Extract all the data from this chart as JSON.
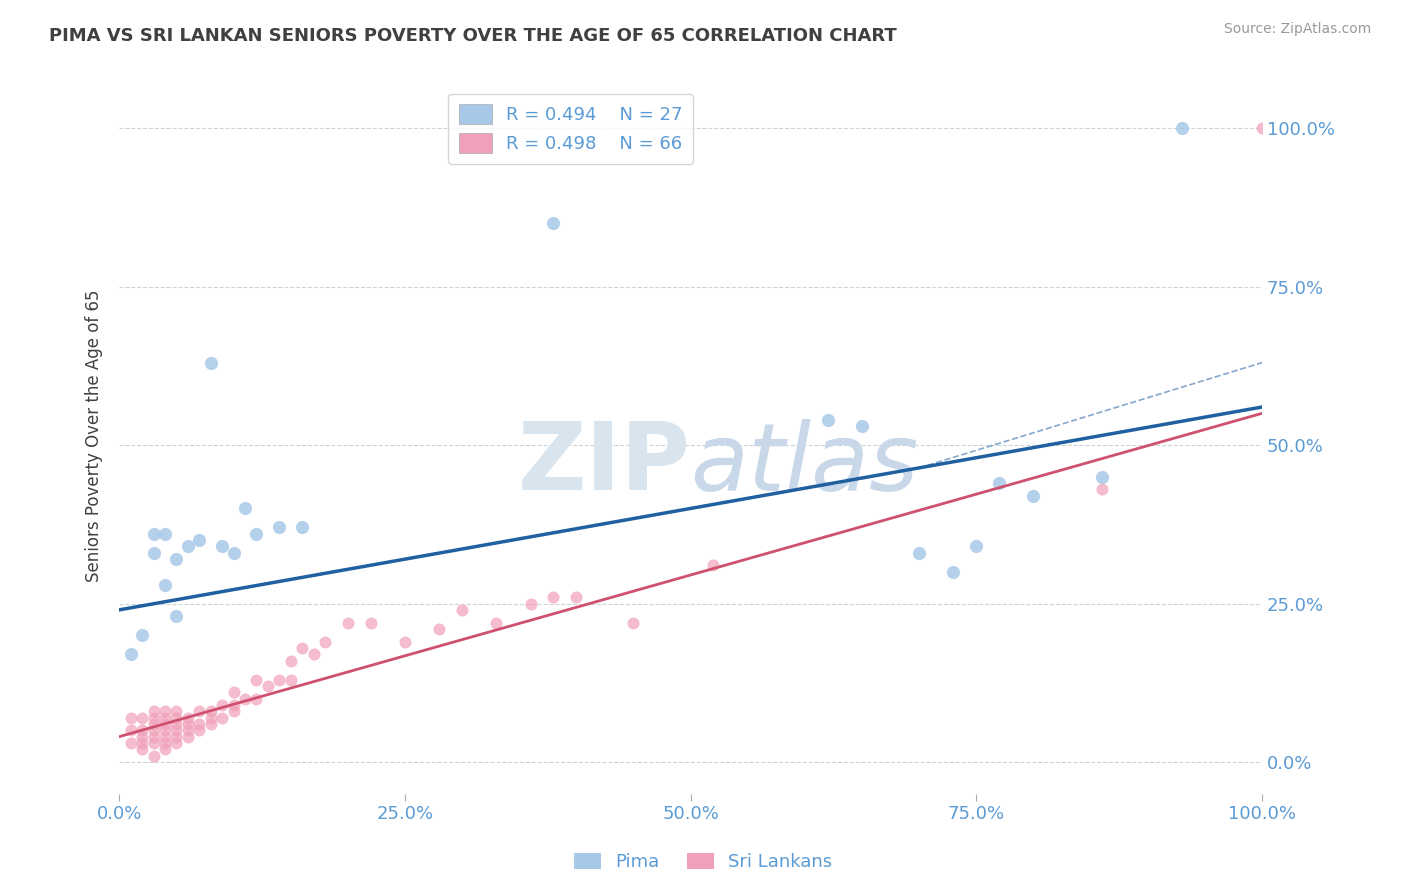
{
  "title": "PIMA VS SRI LANKAN SENIORS POVERTY OVER THE AGE OF 65 CORRELATION CHART",
  "source": "Source: ZipAtlas.com",
  "ylabel": "Seniors Poverty Over the Age of 65",
  "pima_R": 0.494,
  "pima_N": 27,
  "sri_R": 0.498,
  "sri_N": 66,
  "pima_color": "#A8C8E8",
  "sri_color": "#F0A0B8",
  "pima_line_color": "#2060A0",
  "sri_line_color": "#D05070",
  "axis_label_color": "#5B9BD5",
  "title_color": "#404040",
  "background_color": "#FFFFFF",
  "watermark_color": "#D8E4EE",
  "xlim": [
    0.0,
    1.0
  ],
  "ylim": [
    -0.05,
    1.08
  ],
  "yticks": [
    0.0,
    0.25,
    0.5,
    0.75,
    1.0
  ],
  "xticks": [
    0.0,
    0.25,
    0.5,
    0.75,
    1.0
  ],
  "pima_line_x0": 0.0,
  "pima_line_y0": 0.24,
  "pima_line_x1": 1.0,
  "pima_line_y1": 0.56,
  "sri_line_x0": 0.0,
  "sri_line_y0": 0.04,
  "sri_line_x1": 1.0,
  "sri_line_y1": 0.55,
  "pima_x": [
    0.01,
    0.02,
    0.03,
    0.03,
    0.04,
    0.04,
    0.05,
    0.05,
    0.06,
    0.07,
    0.08,
    0.09,
    0.1,
    0.11,
    0.12,
    0.14,
    0.16,
    0.38,
    0.62,
    0.65,
    0.7,
    0.73,
    0.75,
    0.77,
    0.8,
    0.86,
    0.93
  ],
  "pima_y": [
    0.17,
    0.2,
    0.33,
    0.36,
    0.28,
    0.36,
    0.23,
    0.32,
    0.34,
    0.35,
    0.63,
    0.34,
    0.33,
    0.4,
    0.36,
    0.37,
    0.37,
    0.85,
    0.54,
    0.53,
    0.33,
    0.3,
    0.34,
    0.44,
    0.42,
    0.45,
    1.0
  ],
  "sri_x": [
    0.01,
    0.01,
    0.01,
    0.02,
    0.02,
    0.02,
    0.02,
    0.02,
    0.03,
    0.03,
    0.03,
    0.03,
    0.03,
    0.03,
    0.03,
    0.04,
    0.04,
    0.04,
    0.04,
    0.04,
    0.04,
    0.04,
    0.05,
    0.05,
    0.05,
    0.05,
    0.05,
    0.05,
    0.06,
    0.06,
    0.06,
    0.06,
    0.07,
    0.07,
    0.07,
    0.08,
    0.08,
    0.08,
    0.09,
    0.09,
    0.1,
    0.1,
    0.1,
    0.11,
    0.12,
    0.12,
    0.13,
    0.14,
    0.15,
    0.15,
    0.16,
    0.17,
    0.18,
    0.2,
    0.22,
    0.25,
    0.28,
    0.3,
    0.33,
    0.36,
    0.38,
    0.4,
    0.45,
    0.52,
    0.86,
    1.0
  ],
  "sri_y": [
    0.03,
    0.05,
    0.07,
    0.02,
    0.03,
    0.04,
    0.05,
    0.07,
    0.01,
    0.03,
    0.04,
    0.05,
    0.06,
    0.07,
    0.08,
    0.02,
    0.03,
    0.04,
    0.05,
    0.06,
    0.07,
    0.08,
    0.03,
    0.04,
    0.05,
    0.06,
    0.07,
    0.08,
    0.04,
    0.05,
    0.06,
    0.07,
    0.05,
    0.06,
    0.08,
    0.06,
    0.07,
    0.08,
    0.07,
    0.09,
    0.08,
    0.09,
    0.11,
    0.1,
    0.1,
    0.13,
    0.12,
    0.13,
    0.13,
    0.16,
    0.18,
    0.17,
    0.19,
    0.22,
    0.22,
    0.19,
    0.21,
    0.24,
    0.22,
    0.25,
    0.26,
    0.26,
    0.22,
    0.31,
    0.43,
    1.0
  ]
}
